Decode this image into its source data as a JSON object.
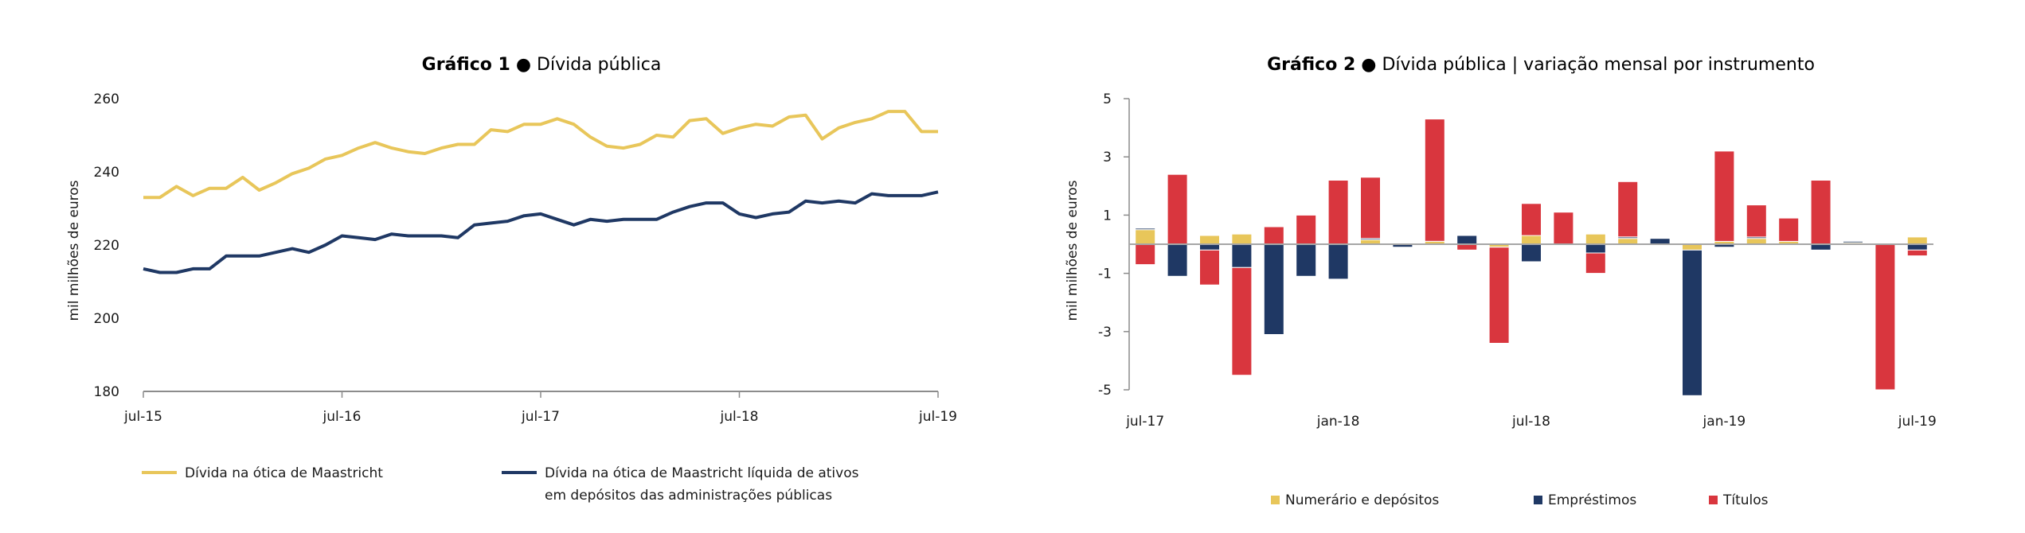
{
  "chart_data": [
    {
      "type": "line",
      "title_bold": "Gráfico 1",
      "title_rest": "Dívida pública",
      "ylabel": "mil milhões de euros",
      "ylim": [
        180,
        260
      ],
      "yticks": [
        "260",
        "240",
        "220",
        "200",
        "180"
      ],
      "xticks": [
        "jul-15",
        "jul-16",
        "jul-17",
        "jul-18",
        "jul-19"
      ],
      "legend_position": "bottom",
      "x": [
        "jul-15",
        "ago-15",
        "set-15",
        "out-15",
        "nov-15",
        "dez-15",
        "jan-16",
        "fev-16",
        "mar-16",
        "abr-16",
        "mai-16",
        "jun-16",
        "jul-16",
        "ago-16",
        "set-16",
        "out-16",
        "nov-16",
        "dez-16",
        "jan-17",
        "fev-17",
        "mar-17",
        "abr-17",
        "mai-17",
        "jun-17",
        "jul-17",
        "ago-17",
        "set-17",
        "out-17",
        "nov-17",
        "dez-17",
        "jan-18",
        "fev-18",
        "mar-18",
        "abr-18",
        "mai-18",
        "jun-18",
        "jul-18",
        "ago-18",
        "set-18",
        "out-18",
        "nov-18",
        "dez-18",
        "jan-19",
        "fev-19",
        "mar-19",
        "abr-19",
        "mai-19",
        "jun-19",
        "jul-19"
      ],
      "series": [
        {
          "name": "Dívida na ótica de Maastricht",
          "color": "#E8C65A",
          "values": [
            233,
            233,
            236,
            233.5,
            235.5,
            235.5,
            238.5,
            235,
            237,
            239.5,
            241,
            243.5,
            244.5,
            246.5,
            248,
            246.5,
            245.5,
            245,
            246.5,
            247.5,
            247.5,
            251.5,
            251,
            253,
            253,
            254.5,
            253,
            249.5,
            247,
            246.5,
            247.5,
            250,
            249.5,
            254,
            254.5,
            250.5,
            252,
            253,
            252.5,
            255,
            255.5,
            249,
            252,
            253.5,
            254.5,
            256.5,
            256.5,
            251,
            251
          ]
        },
        {
          "name": "Dívida na ótica de Maastricht líquida de ativos em depósitos das administrações públicas",
          "name_line1": "Dívida na ótica de Maastricht líquida de ativos",
          "name_line2": "em depósitos das administrações públicas",
          "color": "#1F3864",
          "values": [
            213.5,
            212.5,
            212.5,
            213.5,
            213.5,
            217,
            217,
            217,
            218,
            219,
            218,
            220,
            222.5,
            222,
            221.5,
            223,
            222.5,
            222.5,
            222.5,
            222,
            225.5,
            226,
            226.5,
            228,
            228.5,
            227,
            225.5,
            227,
            226.5,
            227,
            227,
            227,
            229,
            230.5,
            231.5,
            231.5,
            228.5,
            227.5,
            228.5,
            229,
            232,
            231.5,
            232,
            231.5,
            234,
            233.5,
            233.5,
            233.5,
            234.5
          ]
        }
      ]
    },
    {
      "type": "bar",
      "stacked": true,
      "title_bold": "Gráfico 2",
      "title_rest": "Dívida pública  |  variação mensal por instrumento",
      "ylabel": "mil milhões de euros",
      "ylim": [
        -5,
        5
      ],
      "yticks": [
        "5",
        "3",
        "1",
        "-1",
        "-3",
        "-5"
      ],
      "xticks": [
        "jul-17",
        "jan-18",
        "jul-18",
        "jan-19",
        "jul-19"
      ],
      "legend_position": "bottom",
      "categories": [
        "jul-17",
        "ago-17",
        "set-17",
        "out-17",
        "nov-17",
        "dez-17",
        "jan-18",
        "fev-18",
        "mar-18",
        "abr-18",
        "mai-18",
        "jun-18",
        "jul-18",
        "ago-18",
        "set-18",
        "out-18",
        "nov-18",
        "dez-18",
        "jan-19",
        "fev-19",
        "mar-19",
        "abr-19",
        "mai-19",
        "jun-19",
        "jul-19"
      ],
      "series": [
        {
          "name": "Numerário e depósitos",
          "color": "#E8C65A",
          "values": [
            0.5,
            0.0,
            0.3,
            0.35,
            0.0,
            0.0,
            0.0,
            0.15,
            0.0,
            0.1,
            0.0,
            -0.1,
            0.3,
            0.0,
            0.35,
            0.2,
            0.0,
            -0.2,
            0.1,
            0.2,
            0.1,
            0.0,
            0.05,
            0.0,
            0.25
          ]
        },
        {
          "name": "Empréstimos",
          "color": "#1F3864",
          "values": [
            0.05,
            -1.1,
            -0.2,
            -0.8,
            -3.1,
            -1.1,
            -1.2,
            0.05,
            -0.1,
            0.0,
            0.3,
            0.0,
            -0.6,
            0.0,
            -0.3,
            0.05,
            0.2,
            -5.0,
            -0.1,
            0.05,
            0.0,
            -0.2,
            0.05,
            0.0,
            -0.2
          ]
        },
        {
          "name": "Títulos",
          "color": "#D9363E",
          "values": [
            -0.7,
            2.4,
            -1.2,
            -3.7,
            0.6,
            1.0,
            2.2,
            2.1,
            0.0,
            4.2,
            -0.2,
            -3.3,
            1.1,
            1.1,
            -0.7,
            1.9,
            0.0,
            0.0,
            3.1,
            1.1,
            0.8,
            2.2,
            0.0,
            -5.0,
            -0.2
          ]
        }
      ]
    }
  ]
}
